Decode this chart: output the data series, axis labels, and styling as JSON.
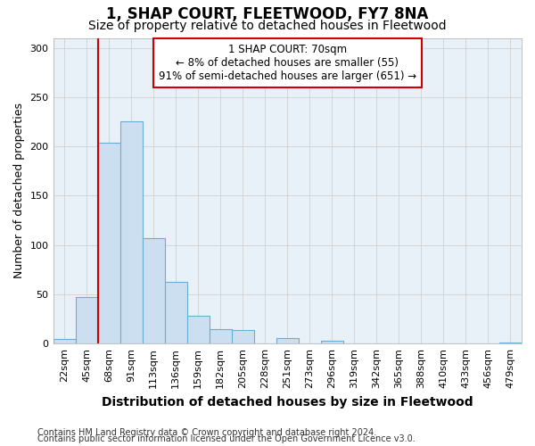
{
  "title": "1, SHAP COURT, FLEETWOOD, FY7 8NA",
  "subtitle": "Size of property relative to detached houses in Fleetwood",
  "xlabel": "Distribution of detached houses by size in Fleetwood",
  "ylabel": "Number of detached properties",
  "bar_labels": [
    "22sqm",
    "45sqm",
    "68sqm",
    "91sqm",
    "113sqm",
    "136sqm",
    "159sqm",
    "182sqm",
    "205sqm",
    "228sqm",
    "251sqm",
    "273sqm",
    "296sqm",
    "319sqm",
    "342sqm",
    "365sqm",
    "388sqm",
    "410sqm",
    "433sqm",
    "456sqm",
    "479sqm"
  ],
  "bar_values": [
    5,
    47,
    204,
    225,
    107,
    63,
    28,
    15,
    14,
    0,
    6,
    0,
    3,
    0,
    0,
    0,
    0,
    0,
    0,
    0,
    1
  ],
  "bar_color": "#ccdff0",
  "bar_edgecolor": "#6aaed6",
  "vline_bin_index": 2,
  "annotation_text_line1": "1 SHAP COURT: 70sqm",
  "annotation_text_line2": "← 8% of detached houses are smaller (55)",
  "annotation_text_line3": "91% of semi-detached houses are larger (651) →",
  "annotation_box_facecolor": "#ffffff",
  "annotation_box_edgecolor": "#cc0000",
  "vline_color": "#cc0000",
  "grid_color": "#d0d0d0",
  "plot_bg_color": "#e8f0f8",
  "fig_bg_color": "#ffffff",
  "footnote_line1": "Contains HM Land Registry data © Crown copyright and database right 2024.",
  "footnote_line2": "Contains public sector information licensed under the Open Government Licence v3.0.",
  "ylim": [
    0,
    310
  ],
  "title_fontsize": 12,
  "subtitle_fontsize": 10,
  "xlabel_fontsize": 10,
  "ylabel_fontsize": 9,
  "tick_fontsize": 8,
  "annotation_fontsize": 8.5,
  "footnote_fontsize": 7
}
